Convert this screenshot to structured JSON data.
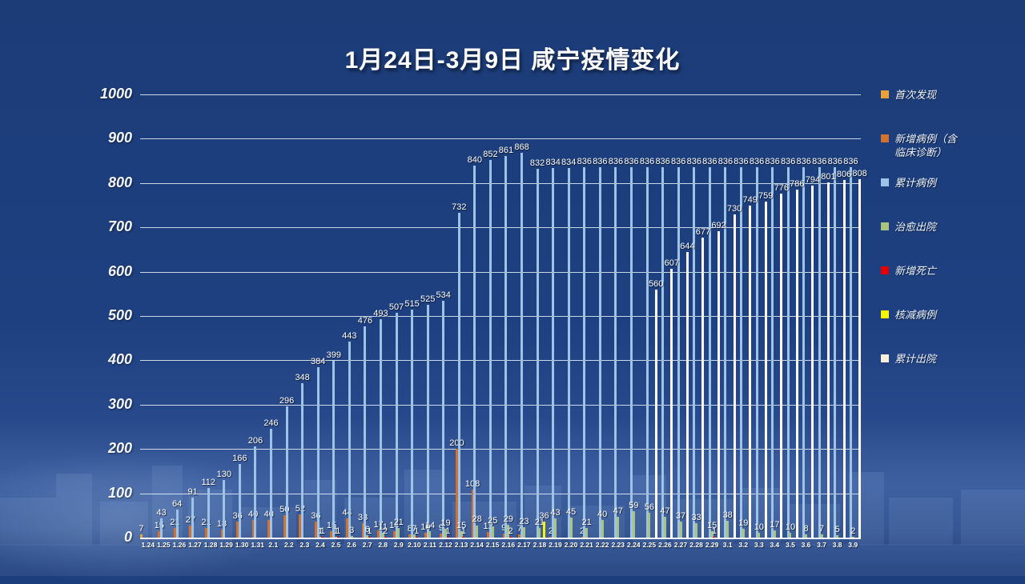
{
  "title": "1月24日-3月9日 咸宁疫情变化",
  "legend": [
    {
      "name": "first_found",
      "label": "首次发现",
      "color": "#e7a33b"
    },
    {
      "name": "new_cases",
      "label": "新增病例（含临床诊断）",
      "color": "#d2722e"
    },
    {
      "name": "cumulative",
      "label": "累计病例",
      "color": "#9dc3e6"
    },
    {
      "name": "cured",
      "label": "治愈出院",
      "color": "#a9c47f"
    },
    {
      "name": "new_deaths",
      "label": "新增死亡",
      "color": "#e00000"
    },
    {
      "name": "reduced",
      "label": "核减病例",
      "color": "#f7f700"
    },
    {
      "name": "discharged_total",
      "label": "累计出院",
      "color": "#faf0dc"
    }
  ],
  "y_axis": {
    "ticks": [
      0,
      100,
      200,
      300,
      400,
      500,
      600,
      700,
      800,
      900,
      1000
    ],
    "max": 1000
  },
  "chart_data": {
    "type": "bar",
    "title": "1月24日-3月9日 咸宁疫情变化",
    "xlabel": "",
    "ylabel": "",
    "ylim": [
      0,
      1000
    ],
    "grid": true,
    "legend_position": "right",
    "categories": [
      "1.24",
      "1.25",
      "1.26",
      "1.27",
      "1.28",
      "1.29",
      "1.30",
      "1.31",
      "2.1",
      "2.2",
      "2.3",
      "2.4",
      "2.5",
      "2.6",
      "2.7",
      "2.8",
      "2.9",
      "2.10",
      "2.11",
      "2.12",
      "2.13",
      "2.14",
      "2.15",
      "2.16",
      "2.17",
      "2.18",
      "2.19",
      "2.20",
      "2.21",
      "2.22",
      "2.23",
      "2.24",
      "2.25",
      "2.26",
      "2.27",
      "2.28",
      "2.29",
      "3.1",
      "3.2",
      "3.3",
      "3.4",
      "3.5",
      "3.6",
      "3.7",
      "3.8",
      "3.9"
    ],
    "series": [
      {
        "name": "首次发现",
        "key": "first_found",
        "color": "#e7a33b",
        "values": [
          7,
          null,
          null,
          null,
          null,
          null,
          null,
          null,
          null,
          null,
          null,
          null,
          null,
          null,
          null,
          null,
          null,
          null,
          null,
          null,
          null,
          null,
          null,
          null,
          null,
          null,
          null,
          null,
          null,
          null,
          null,
          null,
          null,
          null,
          null,
          null,
          null,
          null,
          null,
          null,
          null,
          null,
          null,
          null,
          null,
          null
        ]
      },
      {
        "name": "新增病例（含临床诊断）",
        "key": "new_cases",
        "color": "#d2722e",
        "values": [
          null,
          15,
          21,
          27,
          21,
          18,
          36,
          40,
          40,
          50,
          52,
          36,
          15,
          44,
          33,
          17,
          14,
          8,
          10,
          9,
          200,
          108,
          12,
          9,
          7,
          null,
          2,
          null,
          2,
          null,
          null,
          null,
          null,
          null,
          null,
          null,
          null,
          null,
          null,
          null,
          null,
          null,
          null,
          null,
          null,
          null
        ]
      },
      {
        "name": "累计病例",
        "key": "cumulative",
        "color": "#9dc3e6",
        "values": [
          null,
          43,
          64,
          91,
          112,
          130,
          166,
          206,
          246,
          296,
          348,
          384,
          399,
          443,
          476,
          493,
          507,
          515,
          525,
          534,
          732,
          840,
          852,
          861,
          868,
          832,
          834,
          834,
          836,
          836,
          836,
          836,
          836,
          836,
          836,
          836,
          836,
          836,
          836,
          836,
          836,
          836,
          836,
          836,
          836,
          836
        ]
      },
      {
        "name": "治愈出院",
        "key": "cured",
        "color": "#a9c47f",
        "values": [
          null,
          null,
          null,
          null,
          null,
          null,
          null,
          null,
          null,
          null,
          null,
          1,
          1,
          3,
          6,
          11,
          21,
          7,
          14,
          19,
          15,
          28,
          25,
          29,
          23,
          21,
          43,
          45,
          21,
          40,
          47,
          59,
          56,
          47,
          37,
          33,
          15,
          38,
          19,
          10,
          17,
          10,
          8,
          7,
          5,
          2
        ]
      },
      {
        "name": "新增死亡",
        "key": "new_deaths",
        "color": "#e00000",
        "values": [
          null,
          null,
          null,
          null,
          null,
          null,
          null,
          null,
          null,
          null,
          null,
          1,
          1,
          null,
          1,
          2,
          null,
          1,
          null,
          1,
          1,
          null,
          null,
          2,
          null,
          null,
          null,
          null,
          null,
          null,
          null,
          null,
          null,
          null,
          null,
          null,
          1,
          null,
          null,
          null,
          null,
          null,
          null,
          null,
          null,
          null
        ]
      },
      {
        "name": "核减病例",
        "key": "reduced",
        "color": "#f7f700",
        "values": [
          null,
          null,
          null,
          null,
          null,
          null,
          null,
          null,
          null,
          null,
          null,
          null,
          null,
          null,
          null,
          null,
          null,
          null,
          null,
          null,
          null,
          null,
          null,
          null,
          null,
          36,
          null,
          null,
          null,
          null,
          null,
          null,
          null,
          null,
          null,
          null,
          null,
          null,
          null,
          null,
          null,
          null,
          null,
          null,
          null,
          null
        ]
      },
      {
        "name": "累计出院",
        "key": "discharged_total",
        "color": "#fdfdfd",
        "values": [
          null,
          null,
          null,
          null,
          null,
          null,
          null,
          null,
          null,
          null,
          null,
          null,
          null,
          null,
          null,
          null,
          null,
          null,
          null,
          null,
          null,
          null,
          null,
          null,
          null,
          null,
          null,
          null,
          null,
          null,
          null,
          null,
          560,
          607,
          644,
          677,
          692,
          730,
          749,
          759,
          776,
          786,
          794,
          801,
          806,
          808
        ]
      }
    ]
  }
}
